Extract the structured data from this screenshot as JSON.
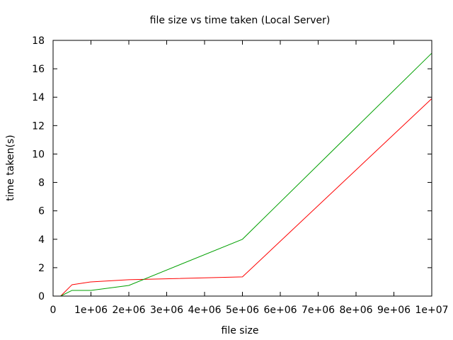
{
  "chart_data": {
    "type": "line",
    "title": "file size vs time taken (Local Server)",
    "xlabel": "file size",
    "ylabel": "time taken(s)",
    "xlim": [
      0,
      10000000
    ],
    "ylim": [
      0,
      18
    ],
    "x_ticks": [
      0,
      1000000,
      2000000,
      3000000,
      4000000,
      5000000,
      6000000,
      7000000,
      8000000,
      9000000,
      10000000
    ],
    "x_tick_labels": [
      "0",
      "1e+06",
      "2e+06",
      "3e+06",
      "4e+06",
      "5e+06",
      "6e+06",
      "7e+06",
      "8e+06",
      "9e+06",
      "1e+07"
    ],
    "y_ticks": [
      0,
      2,
      4,
      6,
      8,
      10,
      12,
      14,
      16,
      18
    ],
    "y_tick_labels": [
      "0",
      "2",
      "4",
      "6",
      "8",
      "10",
      "12",
      "14",
      "16",
      "18"
    ],
    "grid": false,
    "series": [
      {
        "color": "#ff0000",
        "x": [
          200000,
          500000,
          1000000,
          2000000,
          5000000,
          10000000
        ],
        "y": [
          0.0,
          0.8,
          1.0,
          1.15,
          1.35,
          13.9
        ]
      },
      {
        "color": "#00a000",
        "x": [
          200000,
          500000,
          1000000,
          2000000,
          5000000,
          10000000
        ],
        "y": [
          0.0,
          0.4,
          0.4,
          0.75,
          4.0,
          17.1
        ]
      }
    ]
  }
}
